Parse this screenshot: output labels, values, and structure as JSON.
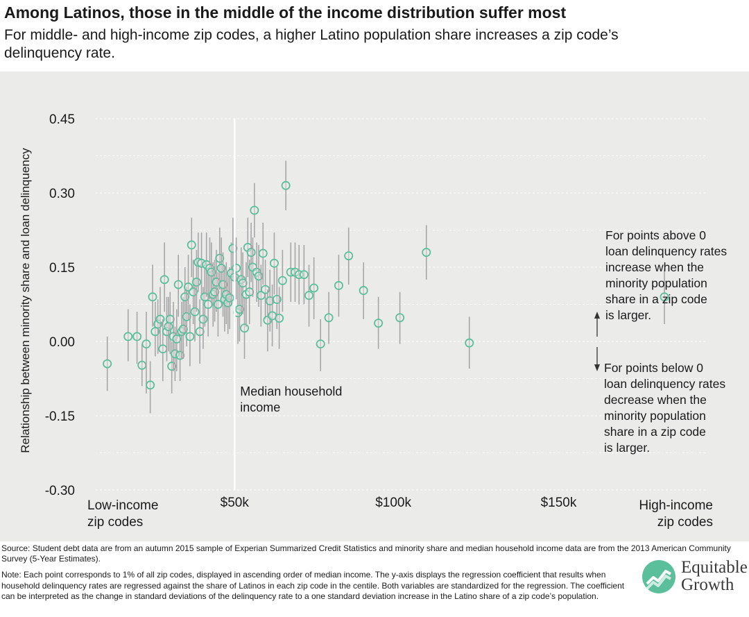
{
  "title": "Among Latinos, those in the middle of the income distribution suffer most",
  "subtitle": "For middle- and high-income zip codes, a higher Latino population share increases a zip code’s delinquency rate.",
  "source": "Source: Student debt data are from an autumn 2015 sample of Experian Summarized Credit Statistics and minority share and median household income data are from the 2013 American Community Survey (5-Year Estimates).",
  "note": "Note: Each point corresponds to 1% of all zip codes, displayed in ascending order of median income. The y-axis displays the regression coefficient that results when household delinquency rates are regressed against the share of Latinos in each zip code in the centile. Both variables are standardized for the regression. The coefficient can be interpreted as the change in standard deviations of the delinquency rate to a one standard deviation increase in the Latino share of a zip code’s population.",
  "logo": {
    "line1": "Equitable",
    "line2": "Growth"
  },
  "colors": {
    "panel": "#ebebea",
    "point": "#5cbf9b",
    "whisker": "#a6a6a6",
    "text": "#1a1a1a"
  },
  "chart_data": {
    "type": "scatter",
    "ylabel": "Relationship between minority share and loan delinquency",
    "xlabel": "",
    "ylim": [
      -0.3,
      0.45
    ],
    "xlim": [
      10,
      195
    ],
    "yticks": [
      "0.45",
      "0.30",
      "0.15",
      "0.00",
      "-0.15",
      "-0.30"
    ],
    "ytick_values": [
      0.45,
      0.3,
      0.15,
      0.0,
      -0.15,
      -0.3
    ],
    "xticks": [
      "$50k",
      "$100k",
      "$150k"
    ],
    "xtick_values": [
      52,
      100,
      150
    ],
    "x_end_labels": {
      "left": [
        "Low-income",
        "zip codes"
      ],
      "right": [
        "High-income",
        "zip codes"
      ]
    },
    "median_line": {
      "x": 52,
      "label": [
        "Median household",
        "income"
      ]
    },
    "annotation_above": [
      "For points above 0",
      "loan delinquency rates",
      "increase when the",
      "minority population",
      "share in a zip code",
      "is larger."
    ],
    "annotation_below": [
      "For points below 0",
      "loan delinquency rates",
      "decrease when the",
      "minority population",
      "share in a zip code",
      "is larger."
    ],
    "grid": true,
    "points": [
      {
        "x": 13.5,
        "y": -0.045,
        "lo": -0.1,
        "hi": 0.01
      },
      {
        "x": 19.8,
        "y": 0.01,
        "lo": -0.04,
        "hi": 0.065
      },
      {
        "x": 22.5,
        "y": 0.01,
        "lo": -0.045,
        "hi": 0.06
      },
      {
        "x": 24.0,
        "y": -0.048,
        "lo": -0.09,
        "hi": -0.005
      },
      {
        "x": 25.3,
        "y": -0.005,
        "lo": -0.105,
        "hi": 0.06
      },
      {
        "x": 26.5,
        "y": -0.088,
        "lo": -0.145,
        "hi": -0.04
      },
      {
        "x": 27.2,
        "y": 0.09,
        "lo": 0.03,
        "hi": 0.155
      },
      {
        "x": 28.0,
        "y": 0.02,
        "lo": -0.03,
        "hi": 0.08
      },
      {
        "x": 28.8,
        "y": 0.035,
        "lo": -0.025,
        "hi": 0.085
      },
      {
        "x": 29.5,
        "y": 0.045,
        "lo": -0.01,
        "hi": 0.11
      },
      {
        "x": 30.3,
        "y": -0.015,
        "lo": -0.08,
        "hi": 0.045
      },
      {
        "x": 30.8,
        "y": 0.125,
        "lo": 0.06,
        "hi": 0.2
      },
      {
        "x": 31.5,
        "y": 0.02,
        "lo": -0.04,
        "hi": 0.09
      },
      {
        "x": 32.0,
        "y": 0.03,
        "lo": -0.02,
        "hi": 0.09
      },
      {
        "x": 32.5,
        "y": 0.045,
        "lo": -0.025,
        "hi": 0.1
      },
      {
        "x": 33.0,
        "y": -0.05,
        "lo": -0.105,
        "hi": 0.0
      },
      {
        "x": 33.5,
        "y": 0.01,
        "lo": -0.06,
        "hi": 0.08
      },
      {
        "x": 34.0,
        "y": -0.025,
        "lo": -0.08,
        "hi": 0.03
      },
      {
        "x": 34.5,
        "y": 0.005,
        "lo": -0.06,
        "hi": 0.065
      },
      {
        "x": 35.0,
        "y": 0.115,
        "lo": 0.05,
        "hi": 0.175
      },
      {
        "x": 35.5,
        "y": -0.028,
        "lo": -0.08,
        "hi": 0.03
      },
      {
        "x": 36.0,
        "y": 0.02,
        "lo": -0.035,
        "hi": 0.08
      },
      {
        "x": 36.5,
        "y": 0.025,
        "lo": -0.035,
        "hi": 0.09
      },
      {
        "x": 37.0,
        "y": 0.09,
        "lo": 0.02,
        "hi": 0.15
      },
      {
        "x": 37.5,
        "y": 0.05,
        "lo": -0.01,
        "hi": 0.11
      },
      {
        "x": 38.0,
        "y": 0.11,
        "lo": 0.045,
        "hi": 0.175
      },
      {
        "x": 38.5,
        "y": 0.01,
        "lo": -0.05,
        "hi": 0.075
      },
      {
        "x": 39.0,
        "y": 0.195,
        "lo": 0.13,
        "hi": 0.25
      },
      {
        "x": 39.5,
        "y": 0.1,
        "lo": 0.035,
        "hi": 0.165
      },
      {
        "x": 40.0,
        "y": 0.06,
        "lo": 0.0,
        "hi": 0.125
      },
      {
        "x": 40.5,
        "y": 0.12,
        "lo": 0.06,
        "hi": 0.185
      },
      {
        "x": 41.0,
        "y": 0.16,
        "lo": 0.1,
        "hi": 0.22
      },
      {
        "x": 41.5,
        "y": 0.02,
        "lo": -0.045,
        "hi": 0.085
      },
      {
        "x": 42.0,
        "y": 0.158,
        "lo": 0.095,
        "hi": 0.22
      },
      {
        "x": 42.5,
        "y": 0.045,
        "lo": -0.015,
        "hi": 0.11
      },
      {
        "x": 43.0,
        "y": 0.09,
        "lo": 0.03,
        "hi": 0.15
      },
      {
        "x": 43.5,
        "y": 0.155,
        "lo": 0.09,
        "hi": 0.22
      },
      {
        "x": 44.0,
        "y": 0.075,
        "lo": 0.01,
        "hi": 0.14
      },
      {
        "x": 44.5,
        "y": 0.148,
        "lo": 0.085,
        "hi": 0.21
      },
      {
        "x": 45.0,
        "y": 0.14,
        "lo": 0.08,
        "hi": 0.2
      },
      {
        "x": 45.5,
        "y": 0.095,
        "lo": 0.03,
        "hi": 0.16
      },
      {
        "x": 46.0,
        "y": 0.1,
        "lo": 0.04,
        "hi": 0.165
      },
      {
        "x": 46.5,
        "y": 0.12,
        "lo": 0.06,
        "hi": 0.185
      },
      {
        "x": 47.0,
        "y": 0.075,
        "lo": 0.01,
        "hi": 0.14
      },
      {
        "x": 47.5,
        "y": 0.168,
        "lo": 0.105,
        "hi": 0.23
      },
      {
        "x": 48.0,
        "y": 0.148,
        "lo": 0.085,
        "hi": 0.21
      },
      {
        "x": 48.5,
        "y": 0.115,
        "lo": 0.05,
        "hi": 0.18
      },
      {
        "x": 49.0,
        "y": 0.085,
        "lo": 0.02,
        "hi": 0.15
      },
      {
        "x": 49.5,
        "y": 0.095,
        "lo": 0.035,
        "hi": 0.16
      },
      {
        "x": 50.0,
        "y": 0.078,
        "lo": 0.015,
        "hi": 0.14
      },
      {
        "x": 50.5,
        "y": 0.088,
        "lo": 0.025,
        "hi": 0.15
      },
      {
        "x": 51.0,
        "y": 0.138,
        "lo": 0.075,
        "hi": 0.2
      },
      {
        "x": 51.5,
        "y": 0.188,
        "lo": 0.125,
        "hi": 0.25
      },
      {
        "x": 52.0,
        "y": 0.13,
        "lo": 0.065,
        "hi": 0.195
      },
      {
        "x": 52.5,
        "y": 0.148,
        "lo": 0.085,
        "hi": 0.21
      },
      {
        "x": 53.0,
        "y": 0.058,
        "lo": -0.005,
        "hi": 0.12
      },
      {
        "x": 53.5,
        "y": 0.065,
        "lo": 0.0,
        "hi": 0.13
      },
      {
        "x": 54.0,
        "y": 0.125,
        "lo": 0.06,
        "hi": 0.19
      },
      {
        "x": 54.5,
        "y": 0.118,
        "lo": 0.055,
        "hi": 0.18
      },
      {
        "x": 55.0,
        "y": 0.027,
        "lo": -0.035,
        "hi": 0.09
      },
      {
        "x": 55.5,
        "y": 0.095,
        "lo": 0.03,
        "hi": 0.16
      },
      {
        "x": 56.0,
        "y": 0.19,
        "lo": 0.13,
        "hi": 0.25
      },
      {
        "x": 56.5,
        "y": 0.1,
        "lo": 0.035,
        "hi": 0.165
      },
      {
        "x": 57.0,
        "y": 0.18,
        "lo": 0.12,
        "hi": 0.24
      },
      {
        "x": 57.5,
        "y": 0.15,
        "lo": 0.09,
        "hi": 0.21
      },
      {
        "x": 58.0,
        "y": 0.265,
        "lo": 0.21,
        "hi": 0.32
      },
      {
        "x": 58.7,
        "y": 0.14,
        "lo": 0.08,
        "hi": 0.2
      },
      {
        "x": 59.3,
        "y": 0.132,
        "lo": 0.07,
        "hi": 0.195
      },
      {
        "x": 60.0,
        "y": 0.093,
        "lo": 0.03,
        "hi": 0.155
      },
      {
        "x": 60.6,
        "y": 0.178,
        "lo": 0.115,
        "hi": 0.24
      },
      {
        "x": 61.3,
        "y": 0.105,
        "lo": 0.045,
        "hi": 0.165
      },
      {
        "x": 62.0,
        "y": 0.043,
        "lo": -0.02,
        "hi": 0.105
      },
      {
        "x": 62.7,
        "y": 0.082,
        "lo": 0.02,
        "hi": 0.145
      },
      {
        "x": 63.4,
        "y": 0.052,
        "lo": -0.01,
        "hi": 0.115
      },
      {
        "x": 64.0,
        "y": 0.158,
        "lo": 0.095,
        "hi": 0.22
      },
      {
        "x": 64.8,
        "y": 0.085,
        "lo": 0.025,
        "hi": 0.15
      },
      {
        "x": 65.5,
        "y": 0.047,
        "lo": -0.015,
        "hi": 0.11
      },
      {
        "x": 66.5,
        "y": 0.123,
        "lo": 0.06,
        "hi": 0.185
      },
      {
        "x": 67.5,
        "y": 0.315,
        "lo": 0.265,
        "hi": 0.365
      },
      {
        "x": 69.0,
        "y": 0.14,
        "lo": 0.08,
        "hi": 0.2
      },
      {
        "x": 70.3,
        "y": 0.14,
        "lo": 0.08,
        "hi": 0.2
      },
      {
        "x": 71.5,
        "y": 0.135,
        "lo": 0.075,
        "hi": 0.195
      },
      {
        "x": 73.0,
        "y": 0.135,
        "lo": 0.075,
        "hi": 0.195
      },
      {
        "x": 74.5,
        "y": 0.093,
        "lo": 0.03,
        "hi": 0.155
      },
      {
        "x": 76.0,
        "y": 0.108,
        "lo": 0.045,
        "hi": 0.17
      },
      {
        "x": 78.0,
        "y": -0.005,
        "lo": -0.06,
        "hi": 0.045
      },
      {
        "x": 80.5,
        "y": 0.048,
        "lo": -0.005,
        "hi": 0.1
      },
      {
        "x": 83.5,
        "y": 0.113,
        "lo": 0.05,
        "hi": 0.175
      },
      {
        "x": 86.5,
        "y": 0.173,
        "lo": 0.115,
        "hi": 0.23
      },
      {
        "x": 91.0,
        "y": 0.103,
        "lo": 0.045,
        "hi": 0.16
      },
      {
        "x": 95.5,
        "y": 0.037,
        "lo": -0.015,
        "hi": 0.09
      },
      {
        "x": 102.0,
        "y": 0.048,
        "lo": -0.005,
        "hi": 0.1
      },
      {
        "x": 110.0,
        "y": 0.18,
        "lo": 0.125,
        "hi": 0.235
      },
      {
        "x": 123.0,
        "y": -0.003,
        "lo": -0.055,
        "hi": 0.05
      },
      {
        "x": 182.0,
        "y": 0.09,
        "lo": 0.035,
        "hi": 0.145
      }
    ]
  }
}
